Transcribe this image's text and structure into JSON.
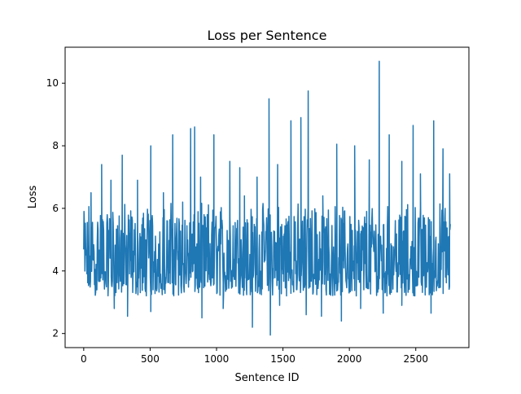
{
  "chart_data": {
    "type": "line",
    "title": "Loss per Sentence",
    "xlabel": "Sentence ID",
    "ylabel": "Loss",
    "xlim": [
      -140,
      2900
    ],
    "ylim": [
      1.55,
      11.15
    ],
    "xticks": [
      0,
      500,
      1000,
      1500,
      2000,
      2500
    ],
    "yticks": [
      2,
      4,
      6,
      8,
      10
    ],
    "grid": false,
    "legend": "none",
    "series": [
      {
        "color": "#1f77b4",
        "x_start": 0,
        "x_end": 2760,
        "baseline_range": [
          3.2,
          6.0
        ],
        "typical_mean": 4.5,
        "peaks": [
          {
            "x": 2,
            "y": 5.9
          },
          {
            "x": 55,
            "y": 6.5
          },
          {
            "x": 135,
            "y": 7.4
          },
          {
            "x": 205,
            "y": 6.9
          },
          {
            "x": 290,
            "y": 7.7
          },
          {
            "x": 405,
            "y": 6.9
          },
          {
            "x": 505,
            "y": 8.0
          },
          {
            "x": 600,
            "y": 6.5
          },
          {
            "x": 670,
            "y": 8.35
          },
          {
            "x": 745,
            "y": 6.2
          },
          {
            "x": 805,
            "y": 8.55
          },
          {
            "x": 835,
            "y": 8.6
          },
          {
            "x": 880,
            "y": 7.0
          },
          {
            "x": 980,
            "y": 8.35
          },
          {
            "x": 1100,
            "y": 7.5
          },
          {
            "x": 1175,
            "y": 7.3
          },
          {
            "x": 1210,
            "y": 6.4
          },
          {
            "x": 1305,
            "y": 7.0
          },
          {
            "x": 1395,
            "y": 9.5
          },
          {
            "x": 1460,
            "y": 7.4
          },
          {
            "x": 1560,
            "y": 8.8
          },
          {
            "x": 1635,
            "y": 8.9
          },
          {
            "x": 1690,
            "y": 9.75
          },
          {
            "x": 1800,
            "y": 6.4
          },
          {
            "x": 1905,
            "y": 8.05
          },
          {
            "x": 2040,
            "y": 8.0
          },
          {
            "x": 2150,
            "y": 7.55
          },
          {
            "x": 2225,
            "y": 10.7
          },
          {
            "x": 2300,
            "y": 8.35
          },
          {
            "x": 2395,
            "y": 7.5
          },
          {
            "x": 2480,
            "y": 8.65
          },
          {
            "x": 2535,
            "y": 7.1
          },
          {
            "x": 2635,
            "y": 8.8
          },
          {
            "x": 2705,
            "y": 7.9
          },
          {
            "x": 2755,
            "y": 7.1
          }
        ],
        "troughs": [
          {
            "x": 230,
            "y": 2.8
          },
          {
            "x": 330,
            "y": 2.55
          },
          {
            "x": 505,
            "y": 2.7
          },
          {
            "x": 890,
            "y": 2.5
          },
          {
            "x": 1050,
            "y": 2.8
          },
          {
            "x": 1270,
            "y": 2.2
          },
          {
            "x": 1405,
            "y": 1.95
          },
          {
            "x": 1475,
            "y": 2.9
          },
          {
            "x": 1675,
            "y": 2.6
          },
          {
            "x": 1790,
            "y": 2.55
          },
          {
            "x": 1940,
            "y": 2.4
          },
          {
            "x": 2085,
            "y": 2.8
          },
          {
            "x": 2255,
            "y": 2.65
          },
          {
            "x": 2395,
            "y": 2.9
          },
          {
            "x": 2615,
            "y": 2.65
          }
        ]
      }
    ]
  }
}
